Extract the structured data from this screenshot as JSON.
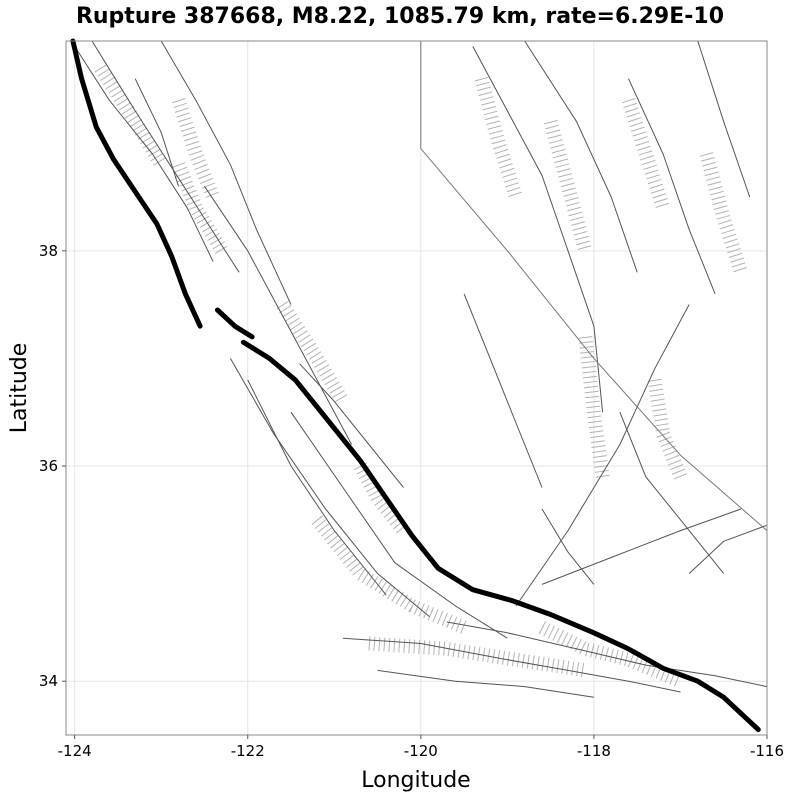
{
  "chart_data": {
    "type": "map",
    "title": "Rupture 387668, M8.22, 1085.79 km, rate=6.29E-10",
    "xlabel": "Longitude",
    "ylabel": "Latitude",
    "xlim": [
      -124.1,
      -116.0
    ],
    "ylim": [
      33.5,
      39.95
    ],
    "grid": true,
    "x_ticks": [
      -124,
      -122,
      -120,
      -118,
      -116
    ],
    "y_ticks": [
      34,
      36,
      38
    ],
    "x_tick_labels": [
      "-124",
      "-122",
      "-120",
      "-118",
      "-116"
    ],
    "y_tick_labels": [
      "34",
      "36",
      "38"
    ],
    "rupture": {
      "name": "rupture-trace",
      "color": "#000000",
      "segments": [
        [
          [
            -124.02,
            39.95
          ],
          [
            -123.92,
            39.6
          ],
          [
            -123.75,
            39.15
          ],
          [
            -123.55,
            38.85
          ],
          [
            -123.3,
            38.55
          ],
          [
            -123.05,
            38.25
          ],
          [
            -122.88,
            37.95
          ],
          [
            -122.72,
            37.6
          ],
          [
            -122.55,
            37.3
          ]
        ],
        [
          [
            -122.35,
            37.45
          ],
          [
            -122.15,
            37.3
          ],
          [
            -121.95,
            37.2
          ]
        ],
        [
          [
            -122.05,
            37.15
          ],
          [
            -121.75,
            37.0
          ],
          [
            -121.45,
            36.8
          ],
          [
            -121.2,
            36.55
          ],
          [
            -121.0,
            36.35
          ],
          [
            -120.7,
            36.05
          ],
          [
            -120.4,
            35.7
          ],
          [
            -120.1,
            35.35
          ],
          [
            -119.8,
            35.05
          ],
          [
            -119.4,
            34.85
          ],
          [
            -118.95,
            34.75
          ],
          [
            -118.5,
            34.62
          ],
          [
            -118.0,
            34.45
          ],
          [
            -117.6,
            34.3
          ],
          [
            -117.2,
            34.12
          ],
          [
            -116.8,
            34.0
          ],
          [
            -116.5,
            33.85
          ],
          [
            -116.1,
            33.55
          ]
        ]
      ]
    },
    "faults": [
      {
        "color": "#555555",
        "points": [
          [
            -124.0,
            39.9
          ],
          [
            -123.6,
            39.4
          ],
          [
            -123.1,
            38.9
          ],
          [
            -122.7,
            38.4
          ],
          [
            -122.4,
            37.9
          ]
        ]
      },
      {
        "color": "#555555",
        "points": [
          [
            -123.8,
            39.95
          ],
          [
            -123.3,
            39.3
          ],
          [
            -122.9,
            38.8
          ],
          [
            -122.5,
            38.3
          ],
          [
            -122.1,
            37.8
          ]
        ]
      },
      {
        "color": "#555555",
        "points": [
          [
            -123.0,
            39.95
          ],
          [
            -122.6,
            39.4
          ],
          [
            -122.2,
            38.8
          ],
          [
            -121.9,
            38.2
          ],
          [
            -121.5,
            37.5
          ]
        ]
      },
      {
        "color": "#555555",
        "points": [
          [
            -122.5,
            38.6
          ],
          [
            -122.0,
            38.0
          ],
          [
            -121.6,
            37.4
          ],
          [
            -121.2,
            36.8
          ],
          [
            -120.8,
            36.2
          ]
        ]
      },
      {
        "color": "#555555",
        "points": [
          [
            -122.2,
            37.0
          ],
          [
            -121.7,
            36.3
          ],
          [
            -121.1,
            35.6
          ],
          [
            -120.5,
            35.0
          ],
          [
            -119.9,
            34.6
          ]
        ]
      },
      {
        "color": "#555555",
        "points": [
          [
            -122.0,
            36.8
          ],
          [
            -121.5,
            36.0
          ],
          [
            -121.0,
            35.4
          ],
          [
            -120.4,
            34.8
          ]
        ]
      },
      {
        "color": "#555555",
        "points": [
          [
            -121.5,
            36.5
          ],
          [
            -120.9,
            35.8
          ],
          [
            -120.3,
            35.1
          ],
          [
            -119.6,
            34.7
          ],
          [
            -119.0,
            34.4
          ]
        ]
      },
      {
        "color": "#555555",
        "points": [
          [
            -120.9,
            34.4
          ],
          [
            -120.0,
            34.35
          ],
          [
            -119.0,
            34.2
          ],
          [
            -118.3,
            34.1
          ],
          [
            -117.6,
            34.0
          ],
          [
            -117.0,
            33.9
          ]
        ]
      },
      {
        "color": "#555555",
        "points": [
          [
            -120.5,
            34.1
          ],
          [
            -119.6,
            34.0
          ],
          [
            -118.8,
            33.95
          ],
          [
            -118.0,
            33.85
          ]
        ]
      },
      {
        "color": "#555555",
        "points": [
          [
            -119.7,
            34.55
          ],
          [
            -119.0,
            34.45
          ],
          [
            -118.2,
            34.3
          ],
          [
            -117.4,
            34.15
          ],
          [
            -116.6,
            34.05
          ],
          [
            -116.0,
            33.95
          ]
        ]
      },
      {
        "color": "#555555",
        "points": [
          [
            -118.6,
            34.9
          ],
          [
            -117.8,
            35.15
          ],
          [
            -117.0,
            35.4
          ],
          [
            -116.3,
            35.6
          ]
        ]
      },
      {
        "color": "#555555",
        "points": [
          [
            -118.9,
            34.7
          ],
          [
            -118.3,
            35.4
          ],
          [
            -117.7,
            36.2
          ],
          [
            -117.3,
            36.9
          ],
          [
            -116.9,
            37.5
          ]
        ]
      },
      {
        "color": "#555555",
        "points": [
          [
            -119.4,
            39.9
          ],
          [
            -119.0,
            39.3
          ],
          [
            -118.6,
            38.7
          ],
          [
            -118.3,
            38.0
          ],
          [
            -118.0,
            37.3
          ],
          [
            -117.9,
            36.5
          ]
        ]
      },
      {
        "color": "#555555",
        "points": [
          [
            -118.8,
            39.95
          ],
          [
            -118.2,
            39.2
          ],
          [
            -117.8,
            38.5
          ],
          [
            -117.5,
            37.8
          ]
        ]
      },
      {
        "color": "#555555",
        "points": [
          [
            -117.6,
            39.6
          ],
          [
            -117.2,
            38.9
          ],
          [
            -116.9,
            38.2
          ],
          [
            -116.6,
            37.6
          ]
        ]
      },
      {
        "color": "#555555",
        "points": [
          [
            -116.8,
            39.95
          ],
          [
            -116.5,
            39.2
          ],
          [
            -116.2,
            38.5
          ]
        ]
      },
      {
        "color": "#777777",
        "points": [
          [
            -120.0,
            39.95
          ],
          [
            -120.0,
            38.95
          ],
          [
            -119.0,
            38.0
          ],
          [
            -118.0,
            37.0
          ],
          [
            -117.0,
            36.1
          ],
          [
            -116.0,
            35.4
          ]
        ]
      },
      {
        "color": "#555555",
        "points": [
          [
            -116.9,
            35.0
          ],
          [
            -116.5,
            35.3
          ],
          [
            -116.0,
            35.45
          ]
        ]
      },
      {
        "color": "#555555",
        "points": [
          [
            -117.7,
            36.5
          ],
          [
            -117.4,
            35.9
          ],
          [
            -117.0,
            35.5
          ],
          [
            -116.5,
            35.0
          ]
        ]
      },
      {
        "color": "#555555",
        "points": [
          [
            -118.6,
            35.6
          ],
          [
            -118.3,
            35.2
          ],
          [
            -118.0,
            34.9
          ]
        ]
      },
      {
        "color": "#555555",
        "points": [
          [
            -119.5,
            37.6
          ],
          [
            -119.2,
            37.0
          ],
          [
            -118.9,
            36.4
          ],
          [
            -118.6,
            35.8
          ]
        ]
      },
      {
        "color": "#555555",
        "points": [
          [
            -123.3,
            39.6
          ],
          [
            -123.0,
            39.1
          ],
          [
            -122.8,
            38.6
          ]
        ]
      },
      {
        "color": "#555555",
        "points": [
          [
            -121.4,
            36.95
          ],
          [
            -121.0,
            36.6
          ],
          [
            -120.6,
            36.2
          ],
          [
            -120.2,
            35.8
          ]
        ]
      }
    ],
    "dip_surfaces": [
      {
        "points": [
          [
            -123.7,
            39.7
          ],
          [
            -123.3,
            39.2
          ],
          [
            -123.0,
            38.8
          ]
        ]
      },
      {
        "points": [
          [
            -122.8,
            38.8
          ],
          [
            -122.6,
            38.4
          ],
          [
            -122.3,
            38.0
          ]
        ]
      },
      {
        "points": [
          [
            -121.6,
            37.5
          ],
          [
            -121.2,
            37.0
          ],
          [
            -120.9,
            36.6
          ]
        ]
      },
      {
        "points": [
          [
            -120.7,
            36.0
          ],
          [
            -120.5,
            35.7
          ],
          [
            -120.2,
            35.4
          ]
        ]
      },
      {
        "points": [
          [
            -121.2,
            35.5
          ],
          [
            -120.7,
            35.0
          ],
          [
            -120.1,
            34.7
          ],
          [
            -119.5,
            34.5
          ]
        ]
      },
      {
        "points": [
          [
            -120.6,
            34.35
          ],
          [
            -119.7,
            34.3
          ],
          [
            -118.9,
            34.2
          ],
          [
            -118.1,
            34.1
          ]
        ]
      },
      {
        "points": [
          [
            -118.6,
            34.5
          ],
          [
            -118.1,
            34.3
          ],
          [
            -117.6,
            34.2
          ],
          [
            -117.0,
            34.0
          ]
        ]
      },
      {
        "points": [
          [
            -119.3,
            39.6
          ],
          [
            -119.1,
            39.0
          ],
          [
            -118.9,
            38.5
          ]
        ]
      },
      {
        "points": [
          [
            -118.5,
            39.2
          ],
          [
            -118.3,
            38.6
          ],
          [
            -118.1,
            38.0
          ]
        ]
      },
      {
        "points": [
          [
            -117.6,
            39.4
          ],
          [
            -117.4,
            38.9
          ],
          [
            -117.2,
            38.4
          ]
        ]
      },
      {
        "points": [
          [
            -116.7,
            38.9
          ],
          [
            -116.5,
            38.3
          ],
          [
            -116.3,
            37.8
          ]
        ]
      },
      {
        "points": [
          [
            -118.1,
            37.2
          ],
          [
            -118.0,
            36.5
          ],
          [
            -117.9,
            35.9
          ]
        ]
      },
      {
        "points": [
          [
            -117.3,
            36.8
          ],
          [
            -117.2,
            36.3
          ],
          [
            -117.0,
            35.9
          ]
        ]
      },
      {
        "points": [
          [
            -122.8,
            39.4
          ],
          [
            -122.6,
            38.9
          ],
          [
            -122.4,
            38.5
          ]
        ]
      }
    ]
  }
}
